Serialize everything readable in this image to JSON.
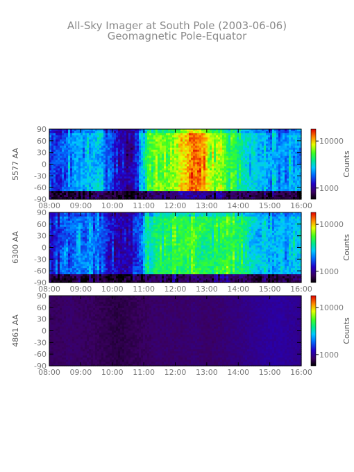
{
  "chart_data": {
    "type": "heatmap",
    "title": "All-Sky Imager at South Pole (2003-06-06)",
    "subtitle": "Geomagnetic Pole-Equator",
    "x_ticks": [
      "08:00",
      "09:00",
      "10:00",
      "11:00",
      "12:00",
      "13:00",
      "14:00",
      "15:00",
      "16:00"
    ],
    "y_ticks": [
      "90",
      "60",
      "30",
      "0",
      "-30",
      "-60",
      "-90"
    ],
    "xlim": [
      "08:00",
      "16:00"
    ],
    "ylim": [
      -90,
      90
    ],
    "colorbar": {
      "label": "Counts",
      "scale": "log",
      "ticks": [
        "10000",
        "1000"
      ]
    },
    "panels": [
      {
        "ylabel": "5577 AA",
        "activity": [
          0.28,
          0.33,
          0.38,
          0.42,
          0.45,
          0.4,
          0.35,
          0.22,
          0.18,
          0.25,
          0.62,
          0.7,
          0.68,
          0.72,
          0.8,
          0.92,
          0.85,
          0.72,
          0.68,
          0.6,
          0.52,
          0.48,
          0.45,
          0.42,
          0.4,
          0.42,
          0.45
        ]
      },
      {
        "ylabel": "6300 AA",
        "activity": [
          0.22,
          0.28,
          0.34,
          0.36,
          0.38,
          0.34,
          0.28,
          0.2,
          0.18,
          0.24,
          0.52,
          0.58,
          0.6,
          0.62,
          0.64,
          0.66,
          0.62,
          0.58,
          0.6,
          0.62,
          0.58,
          0.5,
          0.46,
          0.44,
          0.42,
          0.44,
          0.46
        ]
      },
      {
        "ylabel": "4861 AA",
        "activity": [
          0.1,
          0.1,
          0.11,
          0.1,
          0.1,
          0.09,
          0.08,
          0.07,
          0.08,
          0.09,
          0.1,
          0.11,
          0.11,
          0.11,
          0.11,
          0.12,
          0.11,
          0.11,
          0.12,
          0.13,
          0.14,
          0.15,
          0.16,
          0.17,
          0.17,
          0.16,
          0.15
        ]
      }
    ]
  }
}
